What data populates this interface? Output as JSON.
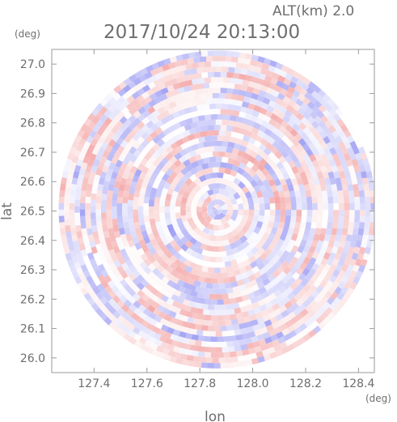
{
  "chart_data": {
    "type": "heatmap",
    "altitude_label": "ALT(km)  2.0",
    "title": "2017/10/24 20:13:00",
    "xlabel": "lon",
    "ylabel": "lat",
    "x_unit": "(deg)",
    "y_unit": "(deg)",
    "xlim": [
      127.24,
      128.46
    ],
    "ylim": [
      25.95,
      27.05
    ],
    "x_ticks": [
      127.4,
      127.6,
      127.8,
      128.0,
      128.2,
      128.4
    ],
    "x_tick_labels": [
      "127.4",
      "127.6",
      "127.8",
      "128.0",
      "128.2",
      "128.4"
    ],
    "y_ticks": [
      26.0,
      26.1,
      26.2,
      26.3,
      26.4,
      26.5,
      26.6,
      26.7,
      26.8,
      26.9,
      27.0
    ],
    "y_tick_labels": [
      "26.0",
      "26.1",
      "26.2",
      "26.3",
      "26.4",
      "26.5",
      "26.6",
      "26.7",
      "26.8",
      "26.9",
      "27.0"
    ],
    "radar_center": {
      "lon": 127.866,
      "lat": 26.505
    },
    "radar_range_deg": {
      "lon": 0.6,
      "lat": 0.545
    },
    "colormap": {
      "negative": "#7c7cf0",
      "zero": "#ffffff",
      "positive": "#f08c8c"
    },
    "grid": false
  }
}
